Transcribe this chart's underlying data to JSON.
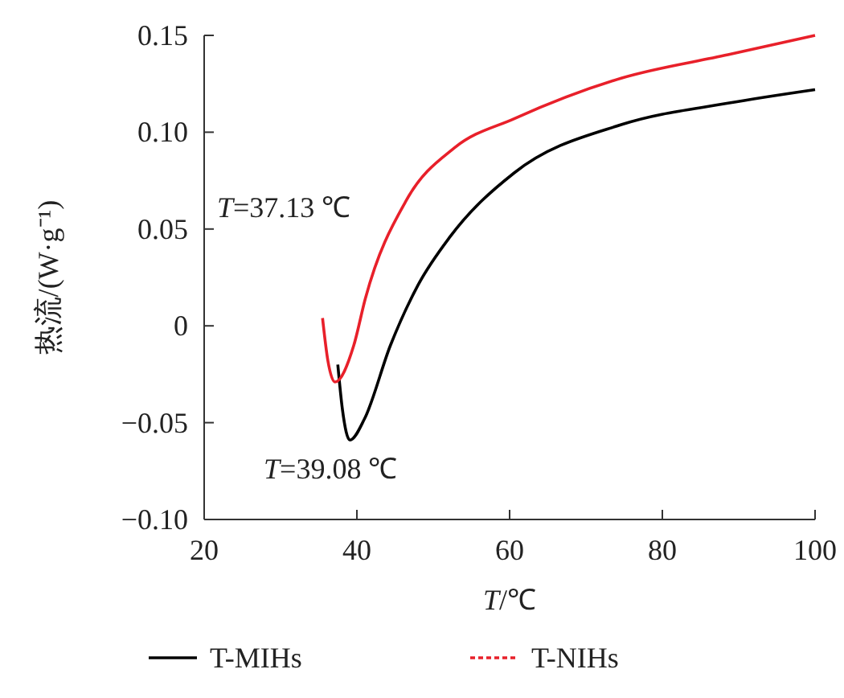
{
  "chart_data": {
    "type": "line",
    "xlabel": "T/℃",
    "ylabel": "热流/(W·g⁻¹)",
    "xlim": [
      20,
      100
    ],
    "xticks": [
      20,
      40,
      60,
      80,
      100
    ],
    "ylim": [
      -0.1,
      0.15
    ],
    "yticks": [
      {
        "value": -0.1,
        "label": "−0.10"
      },
      {
        "value": -0.05,
        "label": "−0.05"
      },
      {
        "value": 0,
        "label": "0"
      },
      {
        "value": 0.05,
        "label": "0.05"
      },
      {
        "value": 0.1,
        "label": "0.10"
      },
      {
        "value": 0.15,
        "label": "0.15"
      }
    ],
    "grid": false,
    "legend": "bottom",
    "marker": "none",
    "series": [
      {
        "name": "T-MIHs",
        "color": "#000000",
        "line_style": "solid",
        "x": [
          37.5,
          38.1,
          39.08,
          41,
          44.4,
          48,
          52.2,
          60.6,
          74.7,
          88.6,
          100
        ],
        "values": [
          -0.02,
          -0.043,
          -0.059,
          -0.048,
          -0.01,
          0.021,
          0.046,
          0.079,
          0.104,
          0.115,
          0.122
        ]
      },
      {
        "name": "T-NIHs",
        "color": "#e8202a",
        "line_style": "solid",
        "x": [
          35.5,
          36.2,
          37.13,
          39.6,
          41.1,
          46.5,
          52.8,
          60.6,
          74.7,
          88.6,
          100
        ],
        "values": [
          0.004,
          -0.018,
          -0.029,
          -0.01,
          0.014,
          0.065,
          0.092,
          0.107,
          0.128,
          0.14,
          0.15
        ]
      }
    ],
    "annotations": [
      "T=37.13 ℃",
      {
        "text": "T=39.08 ℃",
        "x": 39.08,
        "y": -0.059
      }
    ]
  }
}
